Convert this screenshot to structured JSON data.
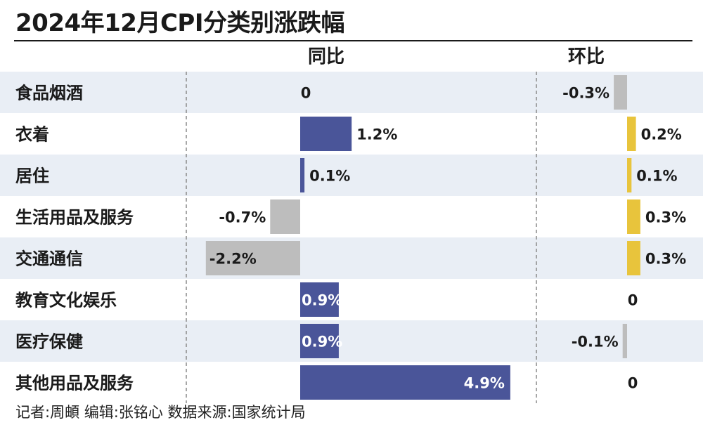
{
  "title": "2024年12月CPI分类别涨跌幅",
  "footer": "记者:周頔  编辑:张铭心  数据来源:国家统计局",
  "chart_data": {
    "type": "bar",
    "title": "2024年12月CPI分类别涨跌幅",
    "categories": [
      "食品烟酒",
      "衣着",
      "居住",
      "生活用品及服务",
      "交通通信",
      "教育文化娱乐",
      "医疗保健",
      "其他用品及服务"
    ],
    "series": [
      {
        "name": "同比",
        "values": [
          0,
          1.2,
          0.1,
          -0.7,
          -2.2,
          0.9,
          0.9,
          4.9
        ],
        "labels": [
          "0",
          "1.2%",
          "0.1%",
          "-0.7%",
          "-2.2%",
          "0.9%",
          "0.9%",
          "4.9%"
        ]
      },
      {
        "name": "环比",
        "values": [
          -0.3,
          0.2,
          0.1,
          0.3,
          0.3,
          0,
          -0.1,
          0
        ],
        "labels": [
          "-0.3%",
          "0.2%",
          "0.1%",
          "0.3%",
          "0.3%",
          "0",
          "-0.1%",
          "0"
        ]
      }
    ],
    "colors": {
      "yoy_positive": "#4a5599",
      "mom_positive": "#e8c43c",
      "negative": "#bdbdbd",
      "row_band": "#e9eef5"
    }
  }
}
